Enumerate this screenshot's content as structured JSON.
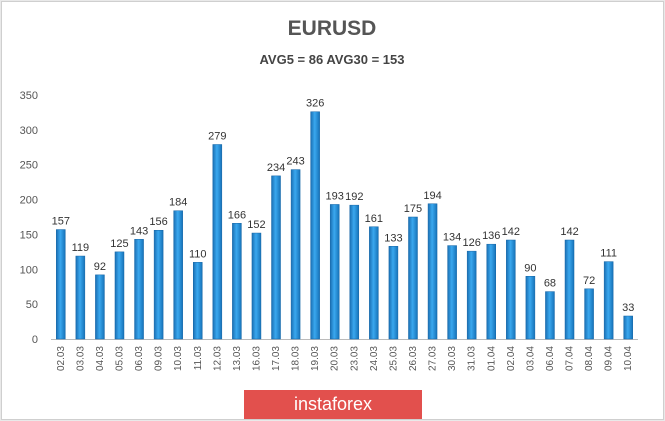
{
  "chart_data": {
    "type": "bar",
    "title": "EURUSD",
    "subtitle": "AVG5 = 86 AVG30 = 153",
    "categories": [
      "02.03",
      "03.03",
      "04.03",
      "05.03",
      "06.03",
      "09.03",
      "10.03",
      "11.03",
      "12.03",
      "13.03",
      "16.03",
      "17.03",
      "18.03",
      "19.03",
      "20.03",
      "23.03",
      "24.03",
      "25.03",
      "26.03",
      "27.03",
      "30.03",
      "31.03",
      "01.04",
      "02.04",
      "03.04",
      "06.04",
      "07.04",
      "08.04",
      "09.04",
      "10.04"
    ],
    "values": [
      157,
      119,
      92,
      125,
      143,
      156,
      184,
      110,
      279,
      166,
      152,
      234,
      243,
      326,
      193,
      192,
      161,
      133,
      175,
      194,
      134,
      126,
      136,
      142,
      90,
      68,
      142,
      72,
      111,
      33
    ],
    "ylim": [
      0,
      350
    ],
    "yticks": [
      0,
      50,
      100,
      150,
      200,
      250,
      300,
      350
    ],
    "xlabel": "",
    "ylabel": "",
    "grid": false,
    "legend": "none",
    "bar_color": "#1e8fd6"
  },
  "watermark": {
    "text": "instaforex",
    "color": "#e2504d"
  }
}
